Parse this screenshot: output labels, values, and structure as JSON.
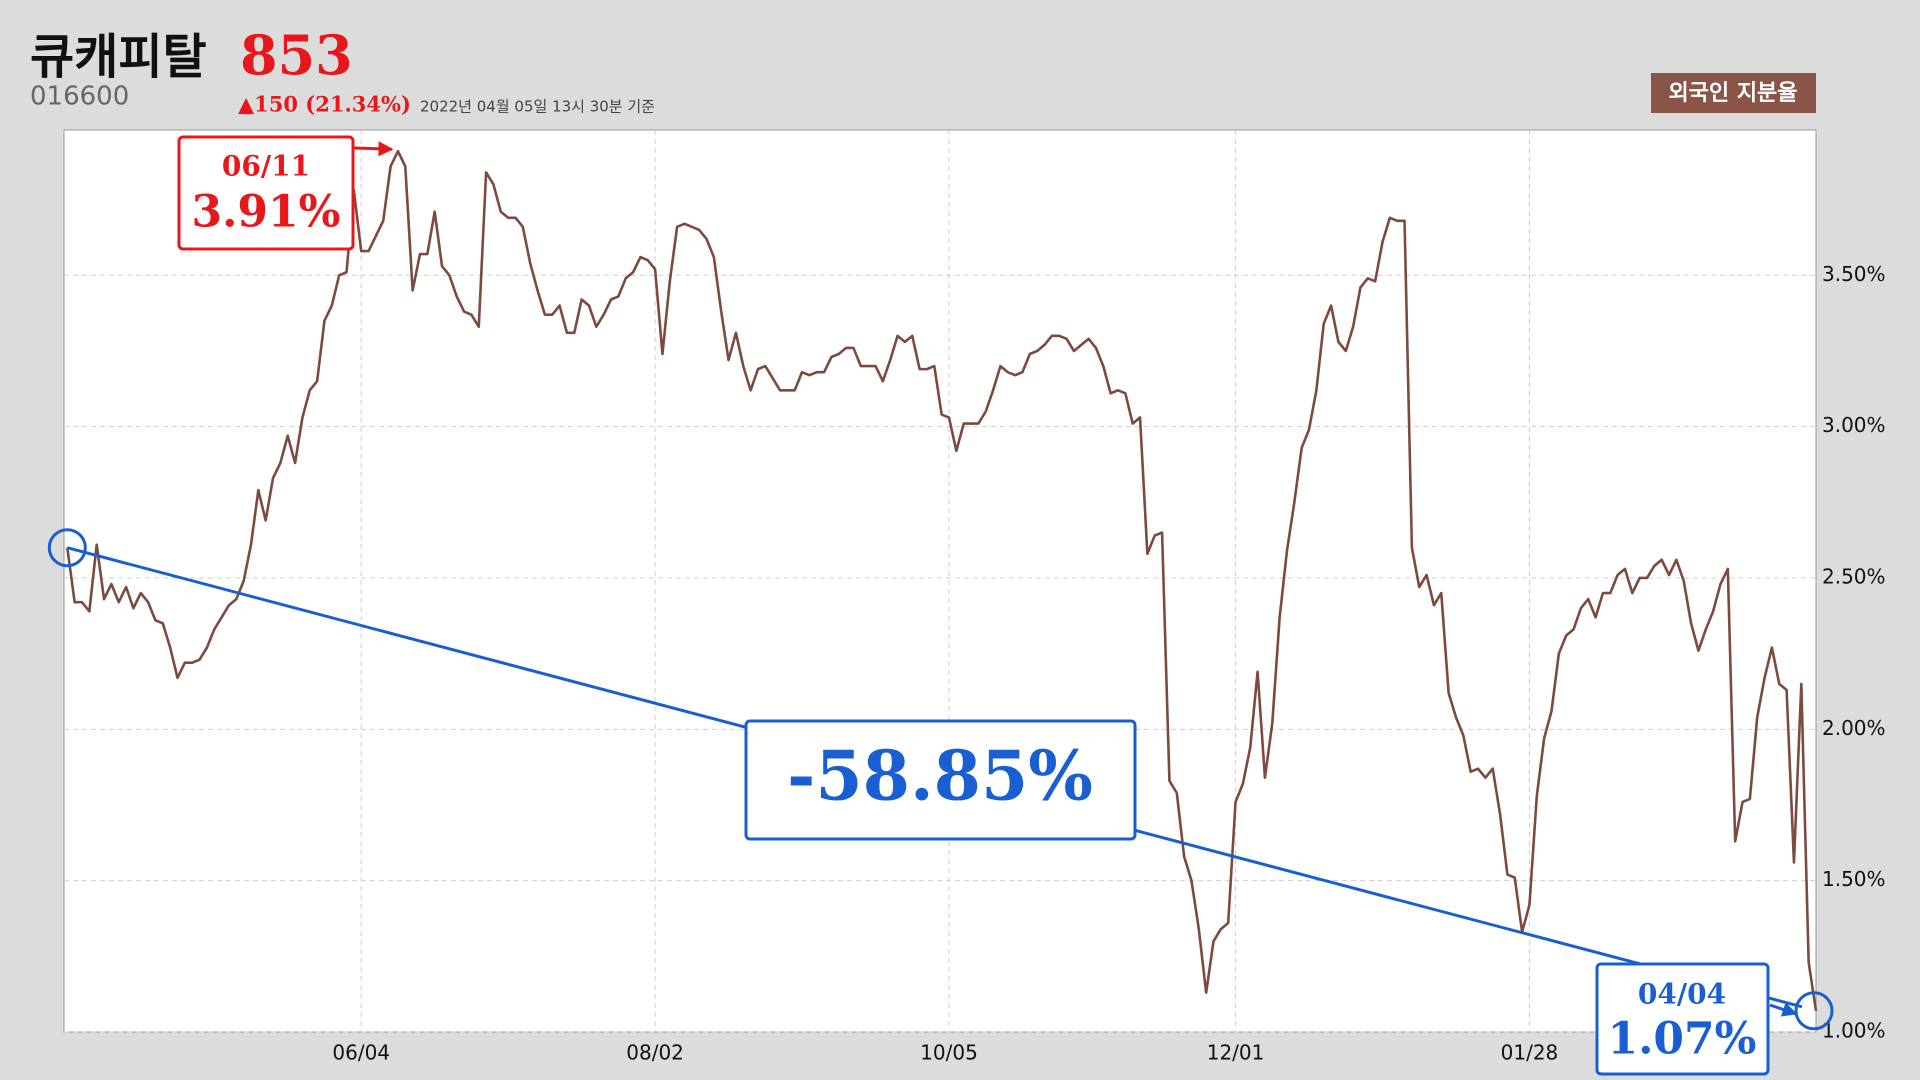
{
  "header": {
    "name": "큐캐피탈",
    "price": 853,
    "code": "016600",
    "change": "▲150 (21.34%)",
    "timestamp": "2022년 04월 05일 13시 30분 기준"
  },
  "chart_data": {
    "type": "line",
    "categories": [
      null,
      null,
      null,
      null,
      null,
      null,
      null,
      null,
      null,
      null,
      null,
      null,
      null,
      null,
      null,
      null,
      null,
      null,
      null,
      null,
      null,
      null,
      null,
      null,
      null,
      null,
      null,
      null,
      null,
      null,
      null,
      null,
      null,
      null,
      null,
      null,
      null,
      null,
      null,
      null,
      "06/04",
      null,
      null,
      null,
      null,
      null,
      null,
      null,
      null,
      null,
      null,
      null,
      null,
      null,
      null,
      null,
      null,
      null,
      null,
      null,
      null,
      null,
      null,
      null,
      null,
      null,
      null,
      null,
      null,
      null,
      null,
      null,
      null,
      null,
      null,
      null,
      null,
      null,
      null,
      null,
      "08/02",
      null,
      null,
      null,
      null,
      null,
      null,
      null,
      null,
      null,
      null,
      null,
      null,
      null,
      null,
      null,
      null,
      null,
      null,
      null,
      null,
      null,
      null,
      null,
      null,
      null,
      null,
      null,
      null,
      null,
      null,
      null,
      null,
      null,
      null,
      null,
      null,
      null,
      null,
      null,
      "10/05",
      null,
      null,
      null,
      null,
      null,
      null,
      null,
      null,
      null,
      null,
      null,
      null,
      null,
      null,
      null,
      null,
      null,
      null,
      null,
      null,
      null,
      null,
      null,
      null,
      null,
      null,
      null,
      null,
      null,
      null,
      null,
      null,
      null,
      null,
      null,
      null,
      null,
      null,
      "12/01",
      null,
      null,
      null,
      null,
      null,
      null,
      null,
      null,
      null,
      null,
      null,
      null,
      null,
      null,
      null,
      null,
      null,
      null,
      null,
      null,
      null,
      null,
      null,
      null,
      null,
      null,
      null,
      null,
      null,
      null,
      null,
      null,
      null,
      null,
      null,
      null,
      null,
      null,
      null,
      "01/28",
      null,
      null,
      null,
      null,
      null,
      null,
      null,
      null,
      null,
      null,
      null,
      null,
      null,
      null,
      null,
      null,
      null,
      null,
      null,
      null,
      null,
      null,
      null,
      null,
      null,
      null,
      null,
      null,
      null,
      null,
      null,
      null,
      null,
      null,
      null,
      null,
      null,
      null,
      null
    ],
    "series": [
      {
        "name": "외국인 지분율",
        "color": "#7d4a3f",
        "values": [
          2.6,
          2.42,
          2.42,
          2.39,
          2.61,
          2.43,
          2.48,
          2.42,
          2.47,
          2.4,
          2.45,
          2.42,
          2.36,
          2.35,
          2.27,
          2.17,
          2.22,
          2.22,
          2.23,
          2.27,
          2.33,
          2.37,
          2.41,
          2.43,
          2.49,
          2.61,
          2.79,
          2.69,
          2.83,
          2.88,
          2.97,
          2.88,
          3.03,
          3.12,
          3.15,
          3.35,
          3.4,
          3.5,
          3.51,
          3.78,
          3.58,
          3.58,
          3.63,
          3.68,
          3.86,
          3.91,
          3.86,
          3.45,
          3.57,
          3.57,
          3.71,
          3.53,
          3.5,
          3.43,
          3.38,
          3.37,
          3.33,
          3.84,
          3.8,
          3.71,
          3.69,
          3.69,
          3.66,
          3.54,
          3.45,
          3.37,
          3.37,
          3.4,
          3.31,
          3.31,
          3.42,
          3.4,
          3.33,
          3.37,
          3.42,
          3.43,
          3.49,
          3.51,
          3.56,
          3.55,
          3.52,
          3.24,
          3.48,
          3.66,
          3.67,
          3.66,
          3.65,
          3.62,
          3.56,
          3.38,
          3.22,
          3.31,
          3.2,
          3.12,
          3.19,
          3.2,
          3.16,
          3.12,
          3.12,
          3.12,
          3.18,
          3.17,
          3.18,
          3.18,
          3.23,
          3.24,
          3.26,
          3.26,
          3.2,
          3.2,
          3.2,
          3.15,
          3.22,
          3.3,
          3.28,
          3.3,
          3.19,
          3.19,
          3.2,
          3.04,
          3.03,
          2.92,
          3.01,
          3.01,
          3.01,
          3.05,
          3.12,
          3.2,
          3.18,
          3.17,
          3.18,
          3.24,
          3.25,
          3.27,
          3.3,
          3.3,
          3.29,
          3.25,
          3.27,
          3.29,
          3.26,
          3.2,
          3.11,
          3.12,
          3.11,
          3.01,
          3.03,
          2.58,
          2.64,
          2.65,
          1.83,
          1.79,
          1.58,
          1.5,
          1.34,
          1.13,
          1.3,
          1.34,
          1.36,
          1.76,
          1.82,
          1.94,
          2.19,
          1.84,
          2.02,
          2.37,
          2.59,
          2.75,
          2.93,
          2.99,
          3.12,
          3.34,
          3.4,
          3.28,
          3.25,
          3.33,
          3.46,
          3.49,
          3.48,
          3.61,
          3.69,
          3.68,
          3.68,
          2.6,
          2.47,
          2.51,
          2.41,
          2.45,
          2.12,
          2.04,
          1.98,
          1.86,
          1.87,
          1.84,
          1.87,
          1.72,
          1.52,
          1.51,
          1.33,
          1.42,
          1.78,
          1.97,
          2.06,
          2.25,
          2.31,
          2.33,
          2.4,
          2.43,
          2.37,
          2.45,
          2.45,
          2.51,
          2.53,
          2.45,
          2.5,
          2.5,
          2.54,
          2.56,
          2.51,
          2.56,
          2.49,
          2.35,
          2.26,
          2.33,
          2.39,
          2.48,
          2.53,
          1.63,
          1.76,
          1.77,
          2.04,
          2.17,
          2.27,
          2.15,
          2.13,
          1.56,
          2.15,
          1.23,
          1.07
        ]
      }
    ],
    "ylim": [
      1,
      3.98
    ],
    "yticks": [
      {
        "value": 1,
        "label": "1.00%"
      },
      {
        "value": 1.5,
        "label": "1.50%"
      },
      {
        "value": 2,
        "label": "2.00%"
      },
      {
        "value": 2.5,
        "label": "2.50%"
      },
      {
        "value": 3,
        "label": "3.00%"
      },
      {
        "value": 3.5,
        "label": "3.50%"
      }
    ],
    "grid": true,
    "annotations": [
      {
        "date": "06/11",
        "value_label": "3.91%"
      },
      {
        "date": "04/04",
        "value_label": "1.07%"
      },
      {
        "text": "-58.85%"
      }
    ]
  }
}
